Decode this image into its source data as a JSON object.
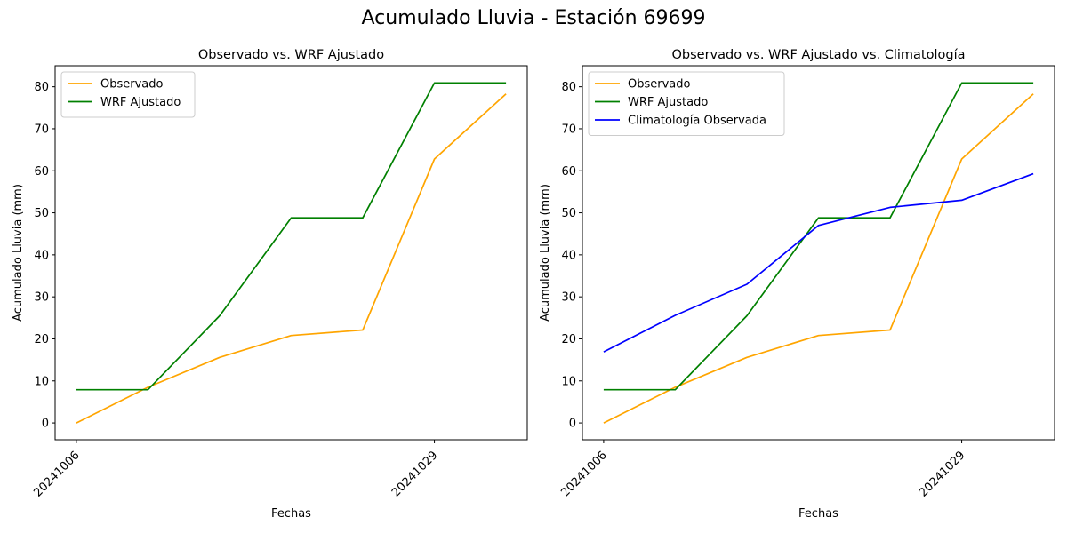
{
  "figure": {
    "suptitle": "Acumulado Lluvia - Estación 69699"
  },
  "chart_data": [
    {
      "type": "line",
      "title": "Observado vs. WRF Ajustado",
      "xlabel": "Fechas",
      "ylabel": "Acumulado Lluvia (mm)",
      "x_tick_labels": [
        {
          "index": 0,
          "label": "20241006"
        },
        {
          "index": 5,
          "label": "20241029"
        }
      ],
      "ylim": [
        -4,
        85
      ],
      "yticks": [
        0,
        10,
        20,
        30,
        40,
        50,
        60,
        70,
        80
      ],
      "legend": "upper-left",
      "grid": false,
      "series": [
        {
          "name": "Observado",
          "color": "#ffa500",
          "values": [
            0,
            8.5,
            15.6,
            20.8,
            22.1,
            62.8,
            78.3
          ]
        },
        {
          "name": "WRF Ajustado",
          "color": "#008000",
          "values": [
            7.9,
            7.9,
            25.5,
            48.8,
            48.8,
            80.9,
            80.9
          ]
        }
      ]
    },
    {
      "type": "line",
      "title": "Observado vs. WRF Ajustado vs. Climatología",
      "xlabel": "Fechas",
      "ylabel": "Acumulado Lluvia (mm)",
      "x_tick_labels": [
        {
          "index": 0,
          "label": "20241006"
        },
        {
          "index": 5,
          "label": "20241029"
        }
      ],
      "ylim": [
        -4,
        85
      ],
      "yticks": [
        0,
        10,
        20,
        30,
        40,
        50,
        60,
        70,
        80
      ],
      "legend": "upper-left",
      "grid": false,
      "series": [
        {
          "name": "Observado",
          "color": "#ffa500",
          "values": [
            0,
            8.5,
            15.6,
            20.8,
            22.1,
            62.8,
            78.3
          ]
        },
        {
          "name": "WRF Ajustado",
          "color": "#008000",
          "values": [
            7.9,
            7.9,
            25.5,
            48.8,
            48.8,
            80.9,
            80.9
          ]
        },
        {
          "name": "Climatología Observada",
          "color": "#0000ff",
          "values": [
            16.9,
            25.6,
            33.0,
            47.0,
            51.3,
            53.0,
            59.3
          ]
        }
      ]
    }
  ]
}
